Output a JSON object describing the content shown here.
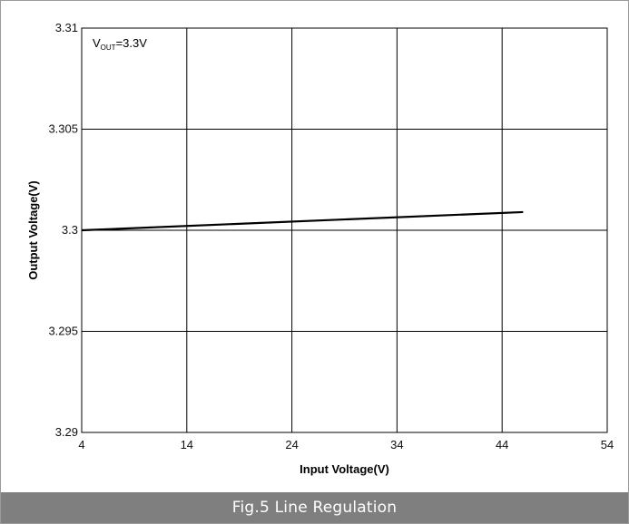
{
  "caption": "Fig.5  Line Regulation",
  "chart_data": {
    "type": "line",
    "title": "",
    "xlabel": "Input Voltage(V)",
    "ylabel": "Output Voltage(V)",
    "xlim": [
      4,
      54
    ],
    "ylim": [
      3.29,
      3.31
    ],
    "x_ticks": [
      4,
      14,
      24,
      34,
      44,
      54
    ],
    "x_tick_labels": [
      "4",
      "14",
      "24",
      "34",
      "44",
      "54"
    ],
    "y_ticks": [
      3.29,
      3.295,
      3.3,
      3.305,
      3.31
    ],
    "y_tick_labels": [
      "3.29",
      "3.295",
      "3.3",
      "3.305",
      "3.31"
    ],
    "grid": true,
    "annotation": {
      "main": "V",
      "sub": "OUT",
      "rest": "=3.3V"
    },
    "series": [
      {
        "x": [
          4,
          46
        ],
        "y": [
          3.3,
          3.3009
        ],
        "color": "#000000"
      }
    ]
  }
}
